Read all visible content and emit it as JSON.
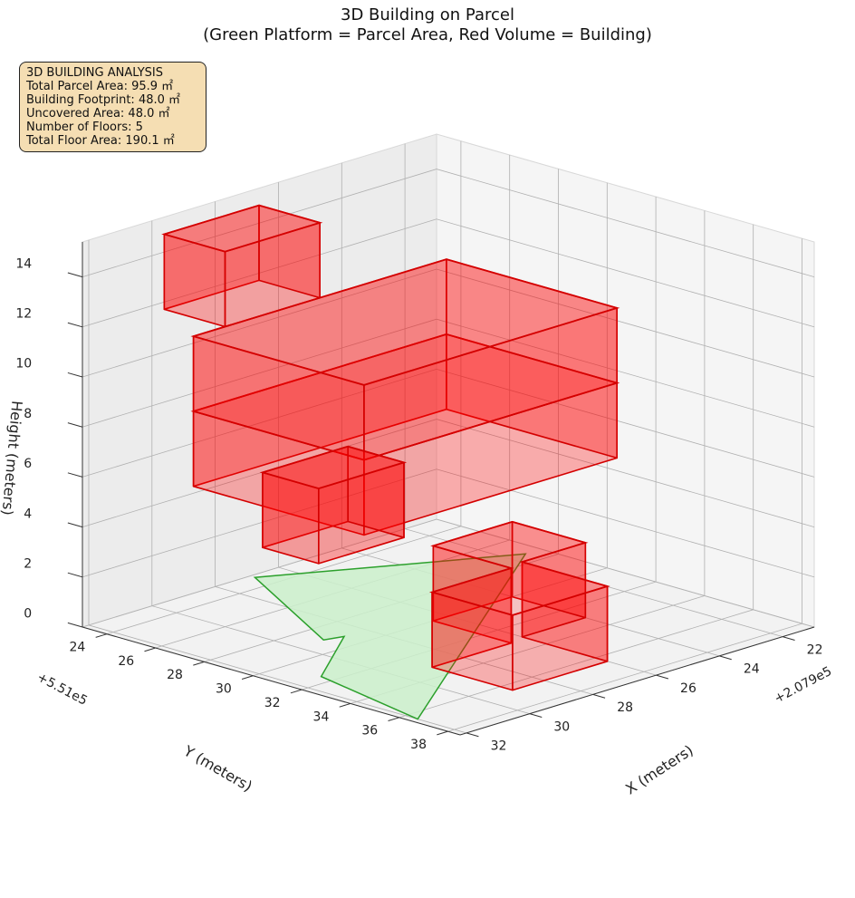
{
  "title": {
    "line1": "3D Building on Parcel",
    "line2": "(Green Platform = Parcel Area, Red Volume = Building)"
  },
  "infobox": {
    "heading": "3D BUILDING ANALYSIS",
    "lines": [
      "Total Parcel Area: 95.9 ㎡",
      "Building Footprint: 48.0 ㎡",
      "Uncovered Area: 48.0 ㎡",
      "Number of Floors: 5",
      "Total Floor Area: 190.1 ㎡"
    ]
  },
  "chart_data": {
    "type": "3d-polygons",
    "xlabel": "X (meters)",
    "ylabel": "Y (meters)",
    "zlabel": "Height (meters)",
    "x_offset": "+2.079e5",
    "y_offset": "+5.51e5",
    "x_ticks": [
      "24",
      "26",
      "28",
      "30",
      "32",
      "34",
      "36",
      "38"
    ],
    "y_ticks": [
      "22",
      "24",
      "26",
      "28",
      "30",
      "32"
    ],
    "z_ticks": [
      "0",
      "2",
      "4",
      "6",
      "8",
      "10",
      "12",
      "14"
    ],
    "xlim": [
      23.0,
      38.5
    ],
    "ylim": [
      21.0,
      32.2
    ],
    "zlim": [
      0,
      15.4
    ],
    "grid": true,
    "colors": {
      "parcel_fill": "#cbf0cb",
      "parcel_edge": "#2ca02c",
      "building_fill": "#ff0000",
      "building_edge": "#d40000"
    },
    "parcel": {
      "name": "Parcel Area",
      "polygon": [
        [
          23.2,
          26.9
        ],
        [
          27.3,
          21.5
        ],
        [
          36.5,
          32.0
        ],
        [
          31.5,
          31.2
        ],
        [
          29.2,
          28.7
        ],
        [
          29.0,
          29.2
        ]
      ]
    },
    "building": {
      "name": "Building",
      "floors": 5,
      "floor_heights": [
        [
          0,
          3
        ],
        [
          3,
          6
        ],
        [
          6,
          9
        ],
        [
          9,
          12
        ],
        [
          12,
          15
        ]
      ],
      "footprint": [
        [
          30.0,
          24.0
        ],
        [
          30.0,
          26.5
        ],
        [
          33.2,
          26.5
        ],
        [
          33.2,
          29.0
        ],
        [
          36.5,
          29.0
        ],
        [
          36.5,
          26.0
        ],
        [
          33.0,
          26.0
        ],
        [
          33.0,
          24.0
        ]
      ],
      "upper_footprint": [
        [
          26.5,
          26.5
        ],
        [
          26.5,
          29.2
        ],
        [
          28.8,
          29.2
        ],
        [
          28.8,
          26.5
        ]
      ],
      "top_footprint": [
        [
          23.5,
          27.0
        ],
        [
          23.5,
          30.0
        ],
        [
          26.0,
          30.0
        ],
        [
          26.0,
          27.0
        ]
      ],
      "slab_footprint": [
        [
          26.0,
          23.0
        ],
        [
          26.0,
          31.0
        ],
        [
          33.0,
          31.0
        ],
        [
          33.0,
          23.0
        ]
      ]
    }
  }
}
